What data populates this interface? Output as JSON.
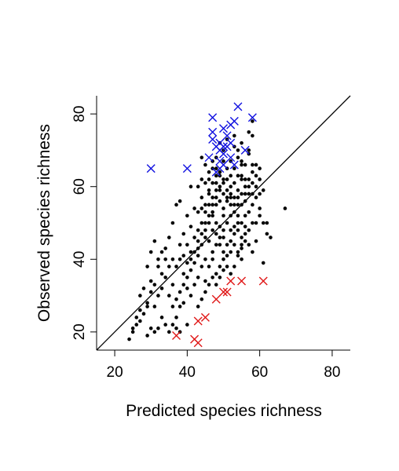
{
  "chart_data": {
    "type": "scatter",
    "title": "",
    "xlabel": "Predicted species richness",
    "ylabel": "Observed species richness",
    "xlim": [
      15,
      85
    ],
    "ylim": [
      15,
      85
    ],
    "x_ticks": [
      20,
      40,
      60,
      80
    ],
    "y_ticks": [
      20,
      40,
      60,
      80
    ],
    "x_tick_labels": [
      "20",
      "40",
      "60",
      "80"
    ],
    "y_tick_labels": [
      "20",
      "40",
      "60",
      "80"
    ],
    "grid": false,
    "reference_line": {
      "type": "identity",
      "from": [
        15,
        15
      ],
      "to": [
        85,
        85
      ],
      "color": "#000000"
    },
    "colors": {
      "black_points": "#000000",
      "high_outliers": "#1010e0",
      "low_outliers": "#e01818"
    },
    "series": [
      {
        "marker": "dot",
        "color": "#000000",
        "points": [
          [
            24,
            18
          ],
          [
            25,
            20
          ],
          [
            26,
            24
          ],
          [
            27,
            26
          ],
          [
            27,
            30
          ],
          [
            28,
            32
          ],
          [
            29,
            28
          ],
          [
            30,
            34
          ],
          [
            29,
            38
          ],
          [
            30,
            42
          ],
          [
            31,
            45
          ],
          [
            32,
            40
          ],
          [
            33,
            36
          ],
          [
            34,
            43
          ],
          [
            35,
            46
          ],
          [
            36,
            50
          ],
          [
            37,
            55
          ],
          [
            38,
            56
          ],
          [
            39,
            47
          ],
          [
            40,
            52
          ],
          [
            41,
            49
          ],
          [
            42,
            54
          ],
          [
            41,
            60
          ],
          [
            43,
            45
          ],
          [
            44,
            57
          ],
          [
            45,
            50
          ],
          [
            46,
            58
          ],
          [
            47,
            53
          ],
          [
            46,
            62
          ],
          [
            48,
            55
          ],
          [
            49,
            60
          ],
          [
            47,
            65
          ],
          [
            48,
            68
          ],
          [
            50,
            58
          ],
          [
            51,
            62
          ],
          [
            52,
            55
          ],
          [
            53,
            65
          ],
          [
            54,
            59
          ],
          [
            55,
            62
          ],
          [
            56,
            56
          ],
          [
            57,
            60
          ],
          [
            58,
            64
          ],
          [
            59,
            66
          ],
          [
            60,
            54
          ],
          [
            61,
            50
          ],
          [
            62,
            47
          ],
          [
            60,
            58
          ],
          [
            57,
            69
          ],
          [
            55,
            72
          ],
          [
            53,
            71
          ],
          [
            52,
            67
          ],
          [
            50,
            70
          ],
          [
            51,
            73
          ],
          [
            49,
            72
          ],
          [
            48,
            63
          ],
          [
            50,
            52
          ],
          [
            52,
            48
          ],
          [
            53,
            44
          ],
          [
            54,
            50
          ],
          [
            55,
            46
          ],
          [
            56,
            52
          ],
          [
            57,
            48
          ],
          [
            58,
            55
          ],
          [
            59,
            45
          ],
          [
            55,
            40
          ],
          [
            54,
            42
          ],
          [
            52,
            42
          ],
          [
            50,
            40
          ],
          [
            49,
            38
          ],
          [
            48,
            36
          ],
          [
            47,
            42
          ],
          [
            46,
            45
          ],
          [
            45,
            40
          ],
          [
            44,
            38
          ],
          [
            43,
            35
          ],
          [
            42,
            33
          ],
          [
            41,
            30
          ],
          [
            40,
            32
          ],
          [
            39,
            28
          ],
          [
            38,
            27
          ],
          [
            37,
            24
          ],
          [
            36,
            22
          ],
          [
            35,
            20
          ],
          [
            34,
            22
          ],
          [
            33,
            24
          ],
          [
            32,
            21
          ],
          [
            31,
            20
          ],
          [
            30,
            21
          ],
          [
            29,
            19
          ],
          [
            31,
            27
          ],
          [
            32,
            30
          ],
          [
            33,
            32
          ],
          [
            34,
            35
          ],
          [
            35,
            30
          ],
          [
            36,
            33
          ],
          [
            37,
            38
          ],
          [
            38,
            40
          ],
          [
            39,
            36
          ],
          [
            40,
            44
          ],
          [
            41,
            42
          ],
          [
            42,
            46
          ],
          [
            43,
            48
          ],
          [
            44,
            50
          ],
          [
            45,
            53
          ],
          [
            46,
            55
          ],
          [
            47,
            57
          ],
          [
            48,
            59
          ],
          [
            49,
            56
          ],
          [
            50,
            54
          ],
          [
            51,
            57
          ],
          [
            52,
            60
          ],
          [
            53,
            57
          ],
          [
            54,
            55
          ],
          [
            55,
            58
          ],
          [
            56,
            60
          ],
          [
            57,
            62
          ],
          [
            58,
            66
          ],
          [
            59,
            60
          ],
          [
            60,
            62
          ],
          [
            62,
            50
          ],
          [
            63,
            46
          ],
          [
            58,
            50
          ],
          [
            56,
            45
          ],
          [
            55,
            43
          ],
          [
            53,
            47
          ],
          [
            51,
            44
          ],
          [
            50,
            46
          ],
          [
            49,
            49
          ],
          [
            48,
            50
          ],
          [
            47,
            48
          ],
          [
            46,
            50
          ],
          [
            45,
            46
          ],
          [
            44,
            44
          ],
          [
            43,
            41
          ],
          [
            42,
            39
          ],
          [
            41,
            37
          ],
          [
            40,
            35
          ],
          [
            39,
            33
          ],
          [
            38,
            31
          ],
          [
            37,
            29
          ],
          [
            36,
            27
          ],
          [
            45,
            34
          ],
          [
            46,
            38
          ],
          [
            47,
            40
          ],
          [
            48,
            44
          ],
          [
            49,
            46
          ],
          [
            50,
            48
          ],
          [
            51,
            50
          ],
          [
            52,
            52
          ],
          [
            53,
            53
          ],
          [
            54,
            57
          ],
          [
            55,
            63
          ],
          [
            56,
            66
          ],
          [
            57,
            70
          ],
          [
            58,
            74
          ],
          [
            56,
            58
          ],
          [
            54,
            63
          ],
          [
            52,
            63
          ],
          [
            51,
            65
          ],
          [
            50,
            67
          ],
          [
            49,
            64
          ],
          [
            48,
            61
          ],
          [
            47,
            61
          ],
          [
            46,
            59
          ],
          [
            45,
            61
          ],
          [
            44,
            62
          ],
          [
            43,
            60
          ],
          [
            45,
            55
          ],
          [
            44,
            54
          ],
          [
            43,
            53
          ],
          [
            67,
            54
          ],
          [
            61,
            39
          ],
          [
            60,
            52
          ],
          [
            59,
            50
          ],
          [
            58,
            58
          ],
          [
            57,
            58
          ],
          [
            56,
            62
          ],
          [
            55,
            66
          ],
          [
            54,
            68
          ],
          [
            53,
            61
          ],
          [
            52,
            58
          ],
          [
            51,
            56
          ],
          [
            50,
            62
          ],
          [
            49,
            59
          ],
          [
            48,
            57
          ],
          [
            47,
            55
          ],
          [
            46,
            52
          ],
          [
            45,
            48
          ],
          [
            44,
            47
          ],
          [
            43,
            43
          ],
          [
            42,
            42
          ],
          [
            41,
            40
          ],
          [
            40,
            39
          ],
          [
            39,
            41
          ],
          [
            38,
            44
          ],
          [
            36,
            40
          ],
          [
            35,
            38
          ],
          [
            34,
            40
          ],
          [
            33,
            42
          ],
          [
            32,
            38
          ],
          [
            31,
            33
          ],
          [
            30,
            31
          ],
          [
            29,
            27
          ],
          [
            28,
            25
          ],
          [
            27,
            23
          ],
          [
            26,
            22
          ],
          [
            25,
            21
          ],
          [
            37,
            21
          ],
          [
            38,
            20
          ],
          [
            40,
            22
          ],
          [
            43,
            27
          ],
          [
            44,
            29
          ],
          [
            45,
            31
          ],
          [
            46,
            33
          ],
          [
            47,
            35
          ],
          [
            48,
            33
          ],
          [
            49,
            35
          ],
          [
            50,
            37
          ],
          [
            51,
            41
          ],
          [
            52,
            45
          ],
          [
            53,
            49
          ],
          [
            54,
            52
          ],
          [
            55,
            55
          ],
          [
            56,
            49
          ],
          [
            57,
            53
          ],
          [
            58,
            61
          ],
          [
            59,
            63
          ],
          [
            60,
            65
          ],
          [
            61,
            59
          ],
          [
            55,
            50
          ],
          [
            54,
            48
          ],
          [
            53,
            55
          ],
          [
            52,
            57
          ],
          [
            51,
            59
          ],
          [
            50,
            61
          ],
          [
            49,
            63
          ],
          [
            48,
            65
          ],
          [
            47,
            67
          ],
          [
            46,
            64
          ],
          [
            45,
            66
          ],
          [
            44,
            68
          ],
          [
            47,
            52
          ],
          [
            48,
            47
          ],
          [
            49,
            44
          ],
          [
            50,
            42
          ],
          [
            51,
            38
          ],
          [
            52,
            36
          ],
          [
            53,
            38
          ],
          [
            54,
            41
          ],
          [
            55,
            44
          ],
          [
            56,
            47
          ],
          [
            57,
            44
          ],
          [
            58,
            42
          ],
          [
            59,
            57
          ],
          [
            55,
            67
          ],
          [
            54,
            70
          ],
          [
            53,
            74
          ],
          [
            57,
            75
          ],
          [
            58,
            78
          ]
        ]
      },
      {
        "marker": "cross",
        "color": "#1010e0",
        "points": [
          [
            30,
            65
          ],
          [
            40,
            65
          ],
          [
            47,
            79
          ],
          [
            47,
            75
          ],
          [
            47,
            73
          ],
          [
            48,
            71
          ],
          [
            49,
            70
          ],
          [
            50,
            69
          ],
          [
            51,
            71
          ],
          [
            49,
            67
          ],
          [
            50,
            66
          ],
          [
            48,
            64
          ],
          [
            49,
            65
          ],
          [
            46,
            68
          ],
          [
            52,
            72
          ],
          [
            51,
            74
          ],
          [
            50,
            76
          ],
          [
            52,
            77
          ],
          [
            53,
            78
          ],
          [
            54,
            82
          ],
          [
            58,
            79
          ],
          [
            56,
            70
          ],
          [
            53,
            66
          ],
          [
            52,
            68
          ],
          [
            50,
            71
          ],
          [
            49,
            72
          ]
        ]
      },
      {
        "marker": "cross",
        "color": "#e01818",
        "points": [
          [
            37,
            19
          ],
          [
            42,
            18
          ],
          [
            43,
            17
          ],
          [
            43,
            23
          ],
          [
            45,
            24
          ],
          [
            48,
            29
          ],
          [
            50,
            31
          ],
          [
            51,
            31
          ],
          [
            52,
            34
          ],
          [
            61,
            34
          ],
          [
            55,
            34
          ]
        ]
      }
    ]
  }
}
